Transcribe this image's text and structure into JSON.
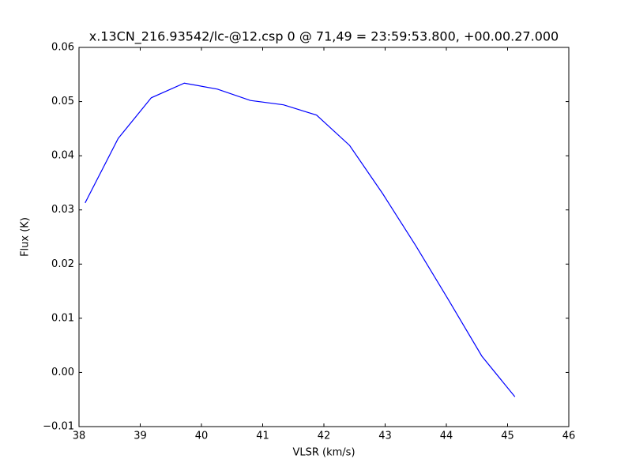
{
  "chart_data": {
    "type": "line",
    "title": "x.13CN_216.93542/lc-@12.csp 0 @ 71,49 = 23:59:53.800, +00.00.27.000",
    "x_label": "VLSR (km/s)",
    "y_label": "Flux (K)",
    "x": [
      38.1,
      38.64,
      39.18,
      39.72,
      40.26,
      40.8,
      41.34,
      41.88,
      42.42,
      42.96,
      43.5,
      44.04,
      44.58,
      45.12
    ],
    "values": [
      0.0313,
      0.0432,
      0.0507,
      0.0534,
      0.0523,
      0.0502,
      0.0494,
      0.0475,
      0.0419,
      0.033,
      0.0234,
      0.0133,
      0.003,
      -0.0045
    ],
    "color": "#0000ff",
    "xlim": [
      38,
      46
    ],
    "xticks": [
      38,
      39,
      40,
      41,
      42,
      43,
      44,
      45,
      46
    ],
    "ylim": [
      -0.01,
      0.06
    ],
    "yticks": [
      {
        "value": -0.01,
        "label": "−0.01"
      },
      {
        "value": 0,
        "label": "0.00"
      },
      0.01,
      0.02,
      0.03,
      0.04,
      0.05,
      0.06
    ]
  }
}
